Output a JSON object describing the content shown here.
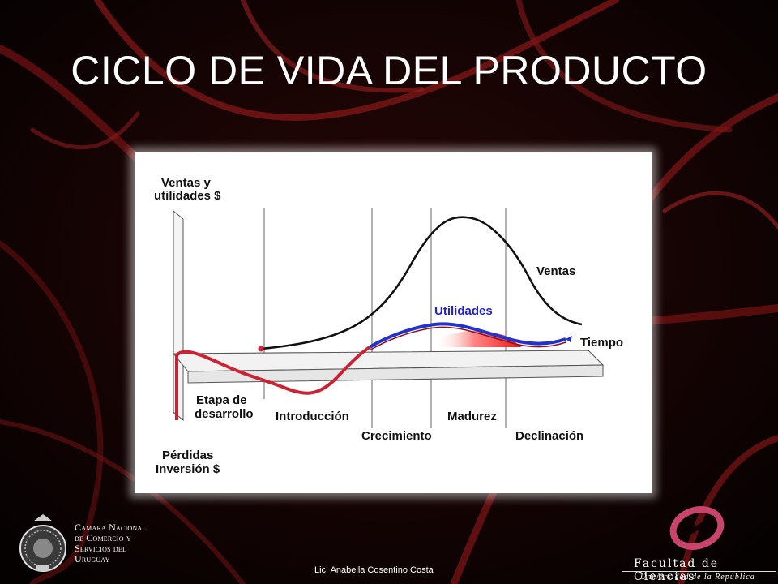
{
  "slide": {
    "title": "CICLO DE VIDA DEL PRODUCTO",
    "author": "Lic. Anabella Cosentino Costa"
  },
  "diagram": {
    "y_axis_label_line1": "Ventas y",
    "y_axis_label_line2": "utilidades $",
    "loss_label_line1": "Pérdidas",
    "loss_label_line2": "Inversión $",
    "x_axis_label": "Tiempo",
    "curves": [
      {
        "label": "Ventas",
        "color": "#111111"
      },
      {
        "label": "Utilidades",
        "color": "#2233cc"
      }
    ],
    "loss_color": "#cc2233",
    "stages": [
      {
        "line1": "Etapa de",
        "line2": "desarrollo"
      },
      {
        "line1": "Introducción"
      },
      {
        "line1": "Crecimiento"
      },
      {
        "line1": "Madurez"
      },
      {
        "line1": "Declinación"
      }
    ]
  },
  "logos": {
    "chamber": [
      "Camara Nacional",
      "de Comercio y",
      "Servicios del",
      "Uruguay"
    ],
    "faculty_name": "Facultad de Ciencias",
    "faculty_university": "Universidad de la República",
    "accent": "#c8446a"
  }
}
